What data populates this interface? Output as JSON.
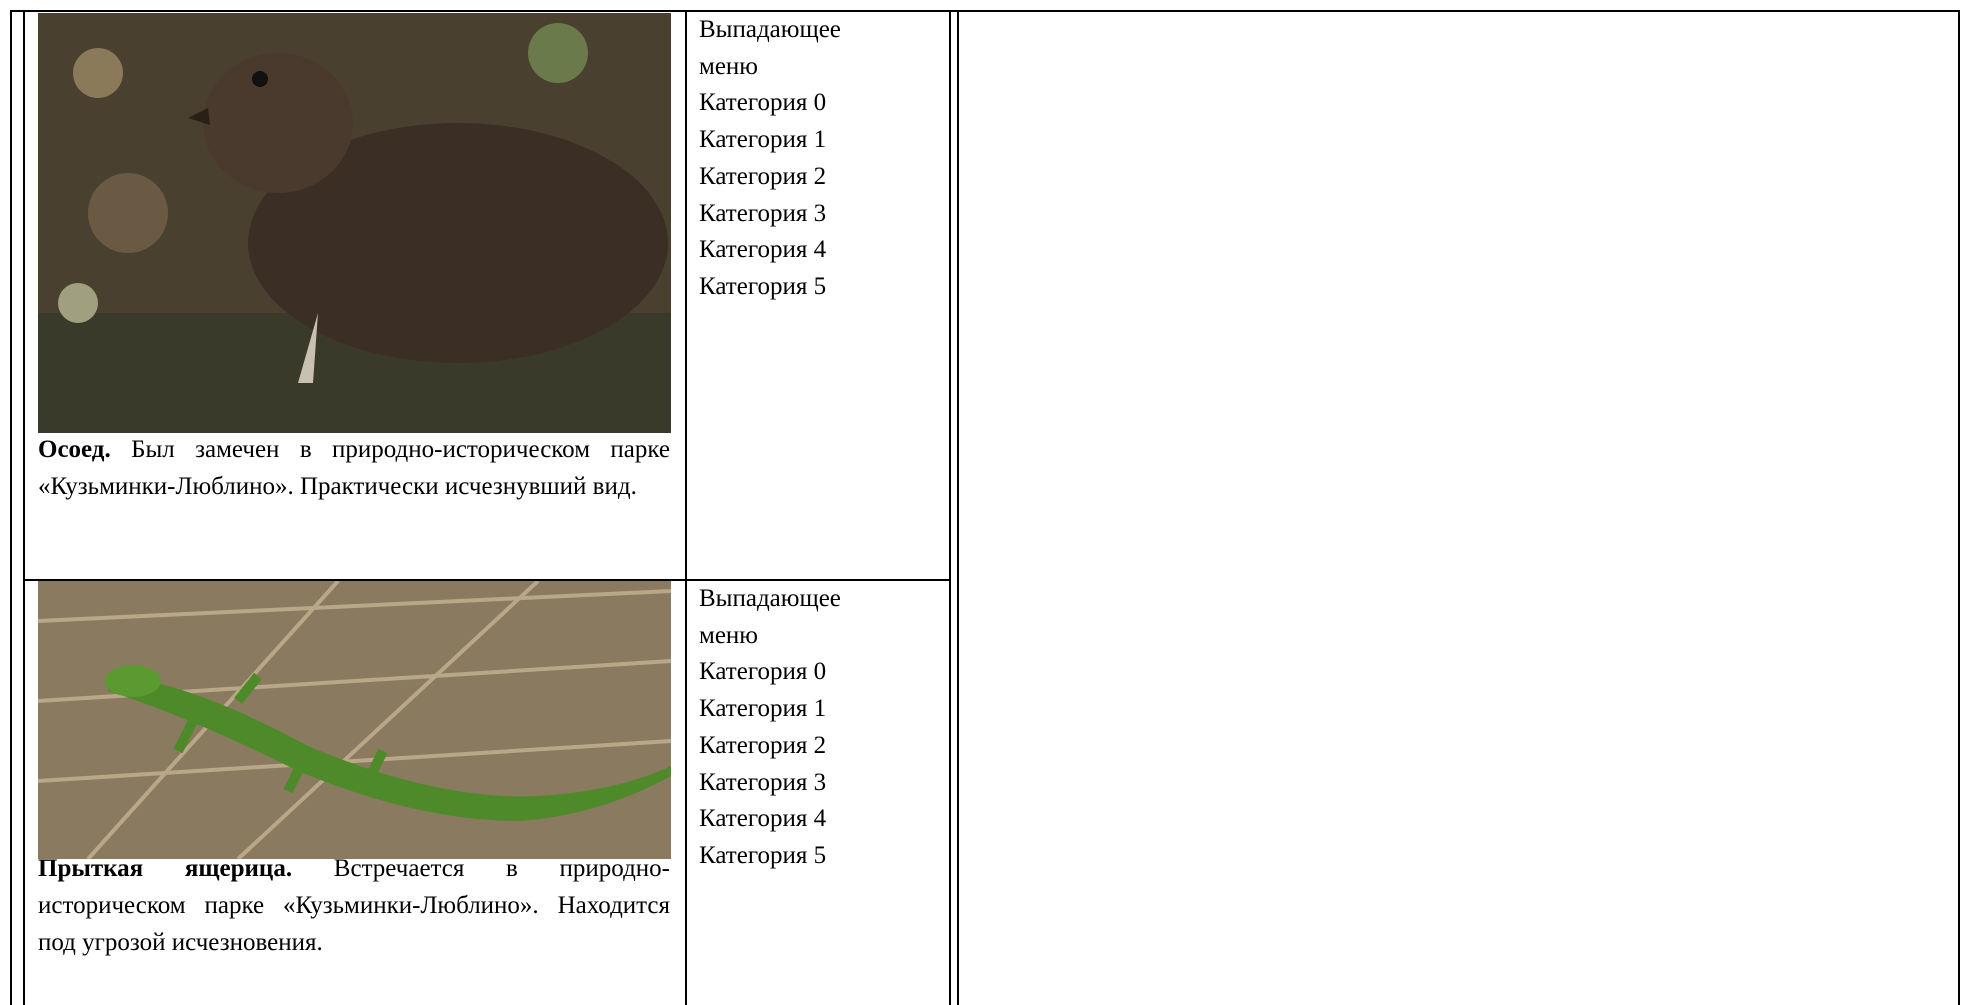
{
  "rows": [
    {
      "caption_bold": "Осоед.",
      "caption_text": "Был замечен в природно-историческом парке «Кузьминки-Люблино». Практически исчезнувший вид.",
      "menu_title": "Выпадающее меню",
      "menu_items": [
        "Категория 0",
        "Категория 1",
        "Категория 2",
        "Категория 3",
        "Категория 4",
        "Категория 5"
      ]
    },
    {
      "caption_bold": "Прыткая ящерица.",
      "caption_text": "Встречается в природно-историческом парке «Кузьминки-Люблино». Находится под угрозой исчезновения.",
      "menu_title": "Выпадающее меню",
      "menu_items": [
        "Категория 0",
        "Категория 1",
        "Категория 2",
        "Категория 3",
        "Категория 4",
        "Категория 5"
      ]
    }
  ]
}
